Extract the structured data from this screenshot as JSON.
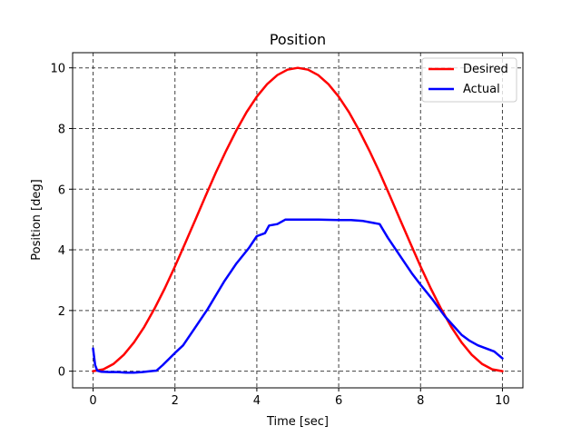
{
  "chart_data": {
    "type": "line",
    "title": "Position",
    "xlabel": "Time [sec]",
    "ylabel": "Position [deg]",
    "xlim": [
      -0.5,
      10.5
    ],
    "ylim": [
      -0.55,
      10.5
    ],
    "xticks": [
      0,
      2,
      4,
      6,
      8,
      10
    ],
    "yticks": [
      0,
      2,
      4,
      6,
      8,
      10
    ],
    "grid": true,
    "legend_position": "top-right",
    "series": [
      {
        "name": "Desired",
        "color": "#ff0000",
        "x": [
          0,
          0.25,
          0.5,
          0.75,
          1,
          1.25,
          1.5,
          1.75,
          2,
          2.25,
          2.5,
          2.75,
          3,
          3.25,
          3.5,
          3.75,
          4,
          4.25,
          4.5,
          4.75,
          5,
          5.25,
          5.5,
          5.75,
          6,
          6.25,
          6.5,
          6.75,
          7,
          7.25,
          7.5,
          7.75,
          8,
          8.25,
          8.5,
          8.75,
          9,
          9.25,
          9.5,
          9.75,
          10
        ],
        "y": [
          0,
          0.06,
          0.24,
          0.54,
          0.95,
          1.46,
          2.06,
          2.73,
          3.45,
          4.22,
          5.0,
          5.78,
          6.55,
          7.27,
          7.94,
          8.54,
          9.05,
          9.46,
          9.76,
          9.94,
          10.0,
          9.94,
          9.76,
          9.46,
          9.05,
          8.54,
          7.94,
          7.27,
          6.55,
          5.78,
          5.0,
          4.22,
          3.45,
          2.73,
          2.06,
          1.46,
          0.95,
          0.54,
          0.24,
          0.06,
          0
        ]
      },
      {
        "name": "Actual",
        "color": "#0000ff",
        "x": [
          0,
          0.05,
          0.1,
          0.2,
          0.4,
          0.6,
          0.8,
          1.0,
          1.2,
          1.4,
          1.55,
          1.7,
          2.0,
          2.2,
          2.5,
          2.8,
          3.0,
          3.2,
          3.5,
          3.8,
          4.0,
          4.2,
          4.3,
          4.5,
          4.7,
          5.0,
          5.5,
          6.0,
          6.3,
          6.6,
          6.8,
          7.0,
          7.2,
          7.5,
          7.8,
          8.0,
          8.3,
          8.6,
          8.8,
          9.0,
          9.2,
          9.4,
          9.6,
          9.8,
          10.0
        ],
        "y": [
          0.75,
          0.2,
          0.02,
          -0.02,
          -0.03,
          -0.03,
          -0.05,
          -0.05,
          -0.03,
          0.0,
          0.02,
          0.2,
          0.6,
          0.85,
          1.45,
          2.05,
          2.5,
          2.95,
          3.55,
          4.05,
          4.45,
          4.55,
          4.8,
          4.85,
          5.0,
          5.0,
          5.0,
          4.98,
          4.98,
          4.95,
          4.9,
          4.85,
          4.4,
          3.8,
          3.2,
          2.85,
          2.35,
          1.8,
          1.5,
          1.2,
          1.0,
          0.85,
          0.75,
          0.65,
          0.42
        ]
      }
    ]
  }
}
